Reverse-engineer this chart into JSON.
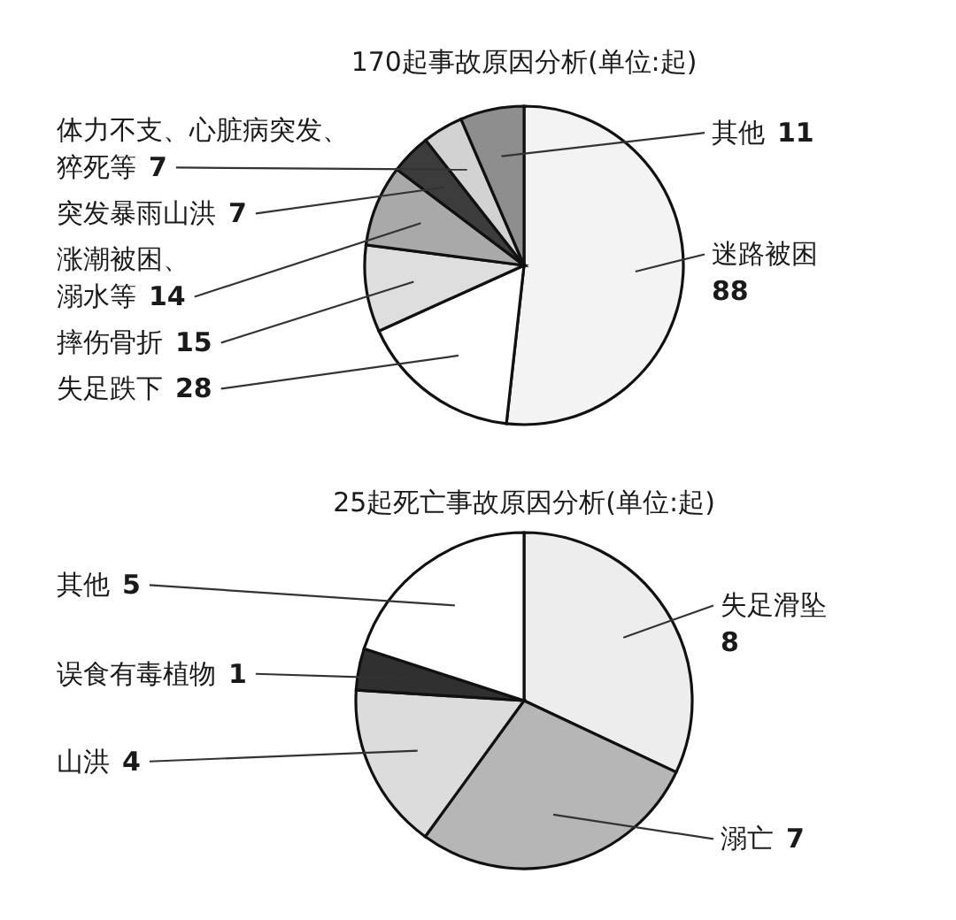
{
  "chart_data": [
    {
      "type": "pie",
      "title": "170起事故原因分析(单位:起)",
      "categories": [
        "迷路被困",
        "失足跌下",
        "摔伤骨折",
        "涨潮被困、溺水等",
        "突发暴雨山洪",
        "体力不支、心脏病突发、猝死等",
        "其他"
      ],
      "values": [
        88,
        28,
        15,
        14,
        7,
        7,
        11
      ],
      "colors": [
        "#f3f3f3",
        "#ffffff",
        "#dedede",
        "#a9a9a9",
        "#3c3c3c",
        "#d2d2d2",
        "#8e8e8e"
      ],
      "data_labels": true
    },
    {
      "type": "pie",
      "title": "25起死亡事故原因分析(单位:起)",
      "categories": [
        "失足滑坠",
        "溺亡",
        "山洪",
        "误食有毒植物",
        "其他"
      ],
      "values": [
        8,
        7,
        4,
        1,
        5
      ],
      "colors": [
        "#ededed",
        "#b6b6b6",
        "#dcdcdc",
        "#303030",
        "#ffffff"
      ],
      "data_labels": true
    }
  ]
}
